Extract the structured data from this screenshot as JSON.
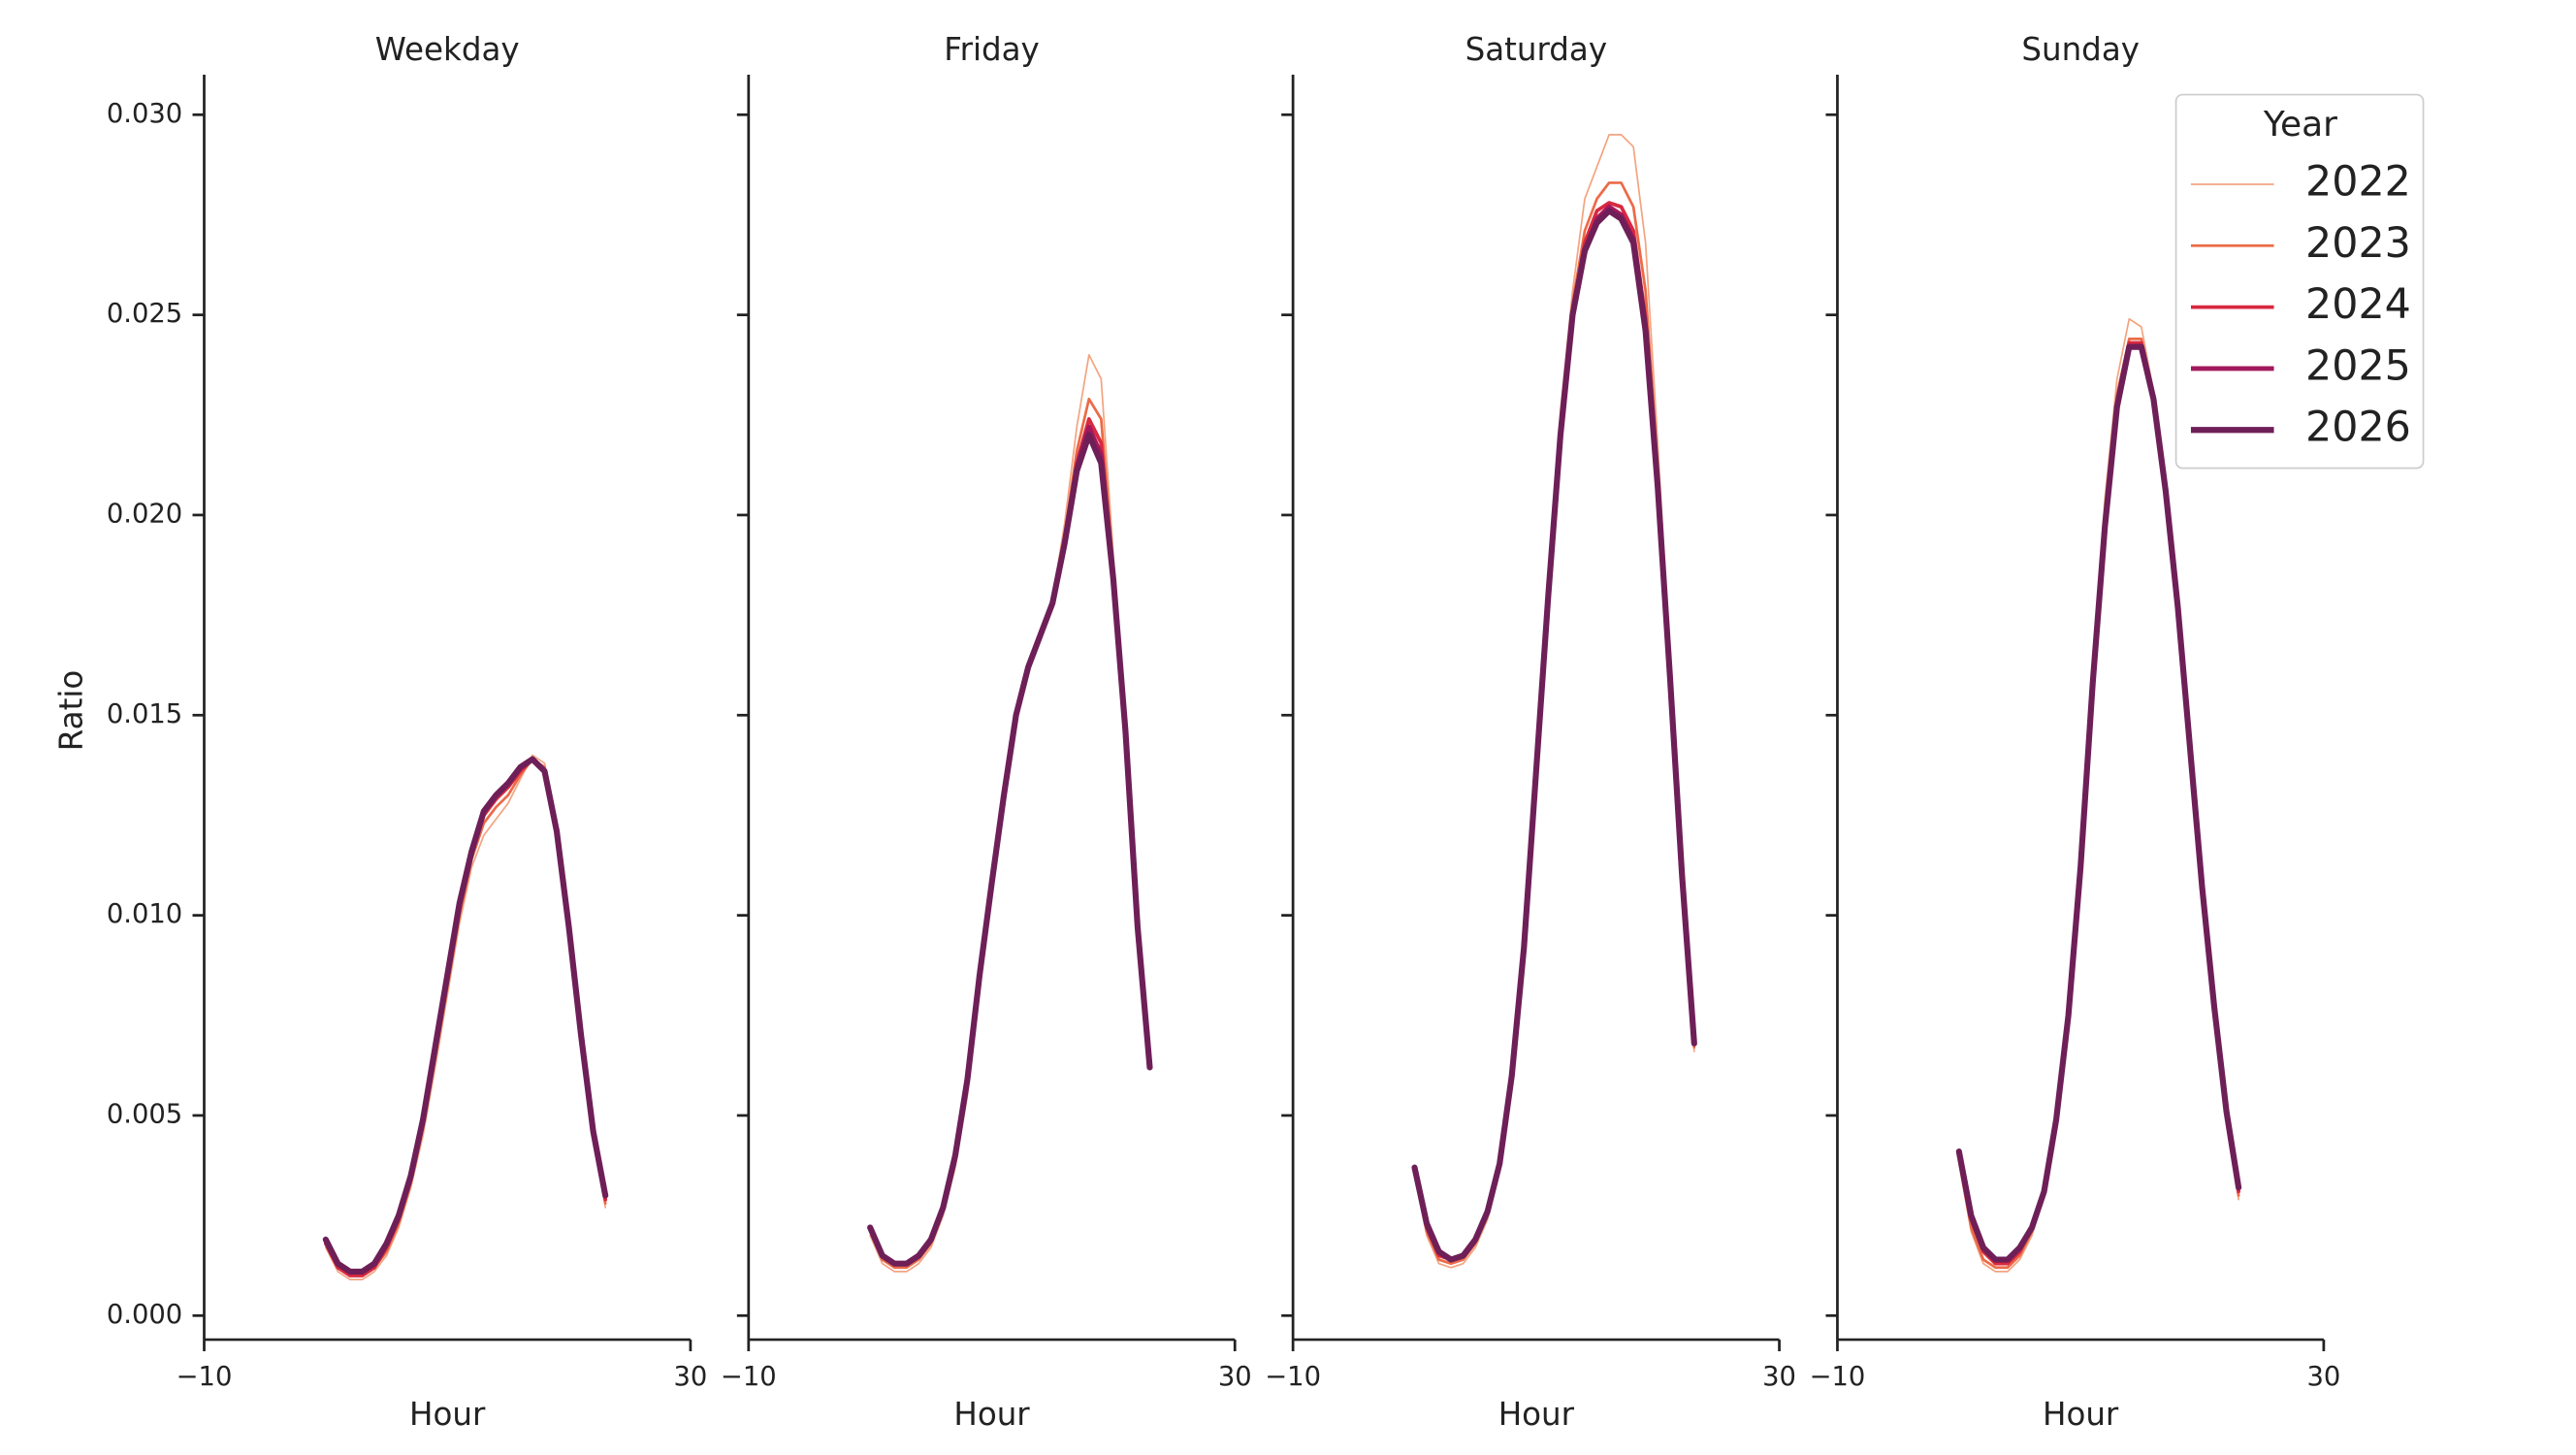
{
  "chart_data": [
    {
      "type": "line",
      "title": "Weekday",
      "xlabel": "Hour",
      "ylabel": "Ratio",
      "x": [
        0,
        1,
        2,
        3,
        4,
        5,
        6,
        7,
        8,
        9,
        10,
        11,
        12,
        13,
        14,
        15,
        16,
        17,
        18,
        19,
        20,
        21,
        22,
        23
      ],
      "xlim": [
        -10,
        30
      ],
      "xticks": [
        {
          "value": -10,
          "label": "−10"
        },
        30
      ],
      "ylim": [
        -0.0006,
        0.031
      ],
      "yticks": [
        {
          "value": 0,
          "label": "0.000"
        },
        {
          "value": 0.005,
          "label": "0.005"
        },
        {
          "value": 0.01,
          "label": "0.010"
        },
        {
          "value": 0.015,
          "label": "0.015"
        },
        {
          "value": 0.02,
          "label": "0.020"
        },
        {
          "value": 0.025,
          "label": "0.025"
        },
        {
          "value": 0.03,
          "label": "0.030"
        }
      ],
      "series": [
        {
          "name": "2022",
          "color": "#f3a481",
          "values": [
            0.0017,
            0.0011,
            0.0009,
            0.0009,
            0.0011,
            0.0015,
            0.0022,
            0.0032,
            0.0045,
            0.0062,
            0.008,
            0.0098,
            0.0112,
            0.012,
            0.0124,
            0.0128,
            0.0134,
            0.014,
            0.0138,
            0.0121,
            0.0097,
            0.007,
            0.0045,
            0.0027
          ]
        },
        {
          "name": "2023",
          "color": "#ec6b47",
          "values": [
            0.0018,
            0.0012,
            0.001,
            0.001,
            0.0012,
            0.0016,
            0.0023,
            0.0033,
            0.0047,
            0.0064,
            0.0082,
            0.01,
            0.0114,
            0.0123,
            0.0127,
            0.013,
            0.0135,
            0.0139,
            0.0137,
            0.0121,
            0.0097,
            0.007,
            0.0045,
            0.0028
          ]
        },
        {
          "name": "2024",
          "color": "#d9283f",
          "values": [
            0.0018,
            0.0012,
            0.001,
            0.001,
            0.0012,
            0.0017,
            0.0024,
            0.0034,
            0.0048,
            0.0066,
            0.0084,
            0.0102,
            0.0115,
            0.0125,
            0.0129,
            0.0132,
            0.0136,
            0.0139,
            0.0136,
            0.0121,
            0.0097,
            0.007,
            0.0046,
            0.0029
          ]
        },
        {
          "name": "2025",
          "color": "#a3185c",
          "values": [
            0.0019,
            0.0013,
            0.0011,
            0.0011,
            0.0013,
            0.0018,
            0.0025,
            0.0035,
            0.0049,
            0.0067,
            0.0085,
            0.0103,
            0.0116,
            0.0126,
            0.013,
            0.0133,
            0.0137,
            0.0139,
            0.0136,
            0.0121,
            0.0097,
            0.007,
            0.0046,
            0.003
          ]
        },
        {
          "name": "2026",
          "color": "#6e1f58",
          "values": [
            0.0019,
            0.0013,
            0.0011,
            0.0011,
            0.0013,
            0.0018,
            0.0025,
            0.0035,
            0.0049,
            0.0067,
            0.0085,
            0.0103,
            0.0116,
            0.0126,
            0.013,
            0.0133,
            0.0137,
            0.0139,
            0.0136,
            0.0121,
            0.0097,
            0.007,
            0.0046,
            0.003
          ]
        }
      ]
    },
    {
      "type": "line",
      "title": "Friday",
      "xlabel": "Hour",
      "x": [
        0,
        1,
        2,
        3,
        4,
        5,
        6,
        7,
        8,
        9,
        10,
        11,
        12,
        13,
        14,
        15,
        16,
        17,
        18,
        19,
        20,
        21,
        22,
        23
      ],
      "xlim": [
        -10,
        30
      ],
      "xticks": [
        {
          "value": -10,
          "label": "−10"
        },
        30
      ],
      "ylim": [
        -0.0006,
        0.031
      ],
      "yticks": [
        0,
        0.005,
        0.01,
        0.015,
        0.02,
        0.025,
        0.03
      ],
      "series": [
        {
          "name": "2022",
          "color": "#f3a481",
          "values": [
            0.002,
            0.0013,
            0.0011,
            0.0011,
            0.0013,
            0.0017,
            0.0025,
            0.0037,
            0.0055,
            0.0081,
            0.0106,
            0.0129,
            0.015,
            0.0162,
            0.017,
            0.0179,
            0.0198,
            0.0222,
            0.024,
            0.0234,
            0.019,
            0.0148,
            0.0098,
            0.0062
          ]
        },
        {
          "name": "2023",
          "color": "#ec6b47",
          "values": [
            0.0021,
            0.0014,
            0.0012,
            0.0012,
            0.0014,
            0.0018,
            0.0026,
            0.0038,
            0.0057,
            0.0083,
            0.0107,
            0.013,
            0.015,
            0.0162,
            0.017,
            0.0178,
            0.0195,
            0.0216,
            0.0229,
            0.0224,
            0.0187,
            0.0147,
            0.0097,
            0.0062
          ]
        },
        {
          "name": "2024",
          "color": "#d9283f",
          "values": [
            0.0022,
            0.0015,
            0.0013,
            0.0013,
            0.0015,
            0.0019,
            0.0027,
            0.0039,
            0.0058,
            0.0084,
            0.0108,
            0.013,
            0.015,
            0.0162,
            0.017,
            0.0178,
            0.0194,
            0.0213,
            0.0224,
            0.0218,
            0.0185,
            0.0146,
            0.0097,
            0.0062
          ]
        },
        {
          "name": "2025",
          "color": "#a3185c",
          "values": [
            0.0022,
            0.0015,
            0.0013,
            0.0013,
            0.0015,
            0.0019,
            0.0027,
            0.004,
            0.0059,
            0.0085,
            0.0108,
            0.013,
            0.015,
            0.0162,
            0.017,
            0.0178,
            0.0193,
            0.0212,
            0.0222,
            0.0215,
            0.0184,
            0.0146,
            0.0097,
            0.0062
          ]
        },
        {
          "name": "2026",
          "color": "#6e1f58",
          "values": [
            0.0022,
            0.0015,
            0.0013,
            0.0013,
            0.0015,
            0.0019,
            0.0027,
            0.004,
            0.0059,
            0.0085,
            0.0108,
            0.013,
            0.015,
            0.0162,
            0.017,
            0.0178,
            0.0193,
            0.0211,
            0.022,
            0.0213,
            0.0184,
            0.0146,
            0.0097,
            0.0062
          ]
        }
      ]
    },
    {
      "type": "line",
      "title": "Saturday",
      "xlabel": "Hour",
      "x": [
        0,
        1,
        2,
        3,
        4,
        5,
        6,
        7,
        8,
        9,
        10,
        11,
        12,
        13,
        14,
        15,
        16,
        17,
        18,
        19,
        20,
        21,
        22,
        23
      ],
      "xlim": [
        -10,
        30
      ],
      "xticks": [
        {
          "value": -10,
          "label": "−10"
        },
        30
      ],
      "ylim": [
        -0.0006,
        0.031
      ],
      "yticks": [
        0,
        0.005,
        0.01,
        0.015,
        0.02,
        0.025,
        0.03
      ],
      "series": [
        {
          "name": "2022",
          "color": "#f3a481",
          "values": [
            0.0035,
            0.002,
            0.0013,
            0.0012,
            0.0013,
            0.0017,
            0.0024,
            0.0036,
            0.0058,
            0.0092,
            0.0138,
            0.0184,
            0.0226,
            0.0256,
            0.0279,
            0.0287,
            0.0295,
            0.0295,
            0.0292,
            0.0268,
            0.0218,
            0.0164,
            0.011,
            0.0066
          ]
        },
        {
          "name": "2023",
          "color": "#ec6b47",
          "values": [
            0.0036,
            0.0021,
            0.0014,
            0.0013,
            0.0014,
            0.0018,
            0.0025,
            0.0037,
            0.0059,
            0.0092,
            0.0137,
            0.0182,
            0.0223,
            0.0253,
            0.0271,
            0.0279,
            0.0283,
            0.0283,
            0.0277,
            0.0256,
            0.0212,
            0.0162,
            0.011,
            0.0067
          ]
        },
        {
          "name": "2024",
          "color": "#d9283f",
          "values": [
            0.0037,
            0.0022,
            0.0015,
            0.0014,
            0.0015,
            0.0019,
            0.0026,
            0.0038,
            0.006,
            0.0092,
            0.0136,
            0.0181,
            0.0221,
            0.0251,
            0.0268,
            0.0276,
            0.0278,
            0.0277,
            0.0271,
            0.0249,
            0.0209,
            0.0161,
            0.011,
            0.0068
          ]
        },
        {
          "name": "2025",
          "color": "#a3185c",
          "values": [
            0.0037,
            0.0023,
            0.0016,
            0.0014,
            0.0015,
            0.0019,
            0.0026,
            0.0038,
            0.006,
            0.0092,
            0.0136,
            0.018,
            0.022,
            0.025,
            0.0266,
            0.0274,
            0.0277,
            0.0275,
            0.0269,
            0.0247,
            0.0208,
            0.016,
            0.011,
            0.0068
          ]
        },
        {
          "name": "2026",
          "color": "#6e1f58",
          "values": [
            0.0037,
            0.0023,
            0.0016,
            0.0014,
            0.0015,
            0.0019,
            0.0026,
            0.0038,
            0.006,
            0.0092,
            0.0136,
            0.018,
            0.022,
            0.025,
            0.0266,
            0.0273,
            0.0276,
            0.0274,
            0.0268,
            0.0246,
            0.0207,
            0.016,
            0.011,
            0.0068
          ]
        }
      ]
    },
    {
      "type": "line",
      "title": "Sunday",
      "xlabel": "Hour",
      "legend_title": "Year",
      "legend": "upper right",
      "x": [
        0,
        1,
        2,
        3,
        4,
        5,
        6,
        7,
        8,
        9,
        10,
        11,
        12,
        13,
        14,
        15,
        16,
        17,
        18,
        19,
        20,
        21,
        22,
        23
      ],
      "xlim": [
        -10,
        30
      ],
      "xticks": [
        {
          "value": -10,
          "label": "−10"
        },
        30
      ],
      "ylim": [
        -0.0006,
        0.031
      ],
      "yticks": [
        0,
        0.005,
        0.01,
        0.015,
        0.02,
        0.025,
        0.03
      ],
      "series": [
        {
          "name": "2022",
          "color": "#f3a481",
          "values": [
            0.0038,
            0.0021,
            0.0013,
            0.0011,
            0.0011,
            0.0014,
            0.002,
            0.003,
            0.0049,
            0.0077,
            0.0116,
            0.0163,
            0.0204,
            0.0234,
            0.0249,
            0.0247,
            0.0231,
            0.0207,
            0.0177,
            0.0141,
            0.0105,
            0.0074,
            0.0048,
            0.0029
          ]
        },
        {
          "name": "2023",
          "color": "#ec6b47",
          "values": [
            0.0039,
            0.0022,
            0.0014,
            0.0012,
            0.0012,
            0.0015,
            0.0021,
            0.003,
            0.0049,
            0.0076,
            0.0114,
            0.016,
            0.02,
            0.023,
            0.0244,
            0.0244,
            0.023,
            0.0206,
            0.0177,
            0.0141,
            0.0106,
            0.0075,
            0.0049,
            0.003
          ]
        },
        {
          "name": "2024",
          "color": "#d9283f",
          "values": [
            0.004,
            0.0024,
            0.0016,
            0.0013,
            0.0013,
            0.0016,
            0.0022,
            0.0031,
            0.0049,
            0.0075,
            0.0113,
            0.0159,
            0.0198,
            0.0228,
            0.0243,
            0.0243,
            0.0229,
            0.0206,
            0.0177,
            0.0142,
            0.0107,
            0.0076,
            0.005,
            0.0031
          ]
        },
        {
          "name": "2025",
          "color": "#a3185c",
          "values": [
            0.0041,
            0.0025,
            0.0017,
            0.0014,
            0.0014,
            0.0017,
            0.0022,
            0.0031,
            0.0049,
            0.0075,
            0.0112,
            0.0158,
            0.0197,
            0.0227,
            0.0242,
            0.0242,
            0.0229,
            0.0206,
            0.0177,
            0.0142,
            0.0107,
            0.0077,
            0.0051,
            0.0032
          ]
        },
        {
          "name": "2026",
          "color": "#6e1f58",
          "values": [
            0.0041,
            0.0025,
            0.0017,
            0.0014,
            0.0014,
            0.0017,
            0.0022,
            0.0031,
            0.0049,
            0.0075,
            0.0112,
            0.0158,
            0.0197,
            0.0227,
            0.0242,
            0.0242,
            0.0229,
            0.0206,
            0.0177,
            0.0142,
            0.0107,
            0.0077,
            0.0051,
            0.0032
          ]
        }
      ]
    }
  ]
}
